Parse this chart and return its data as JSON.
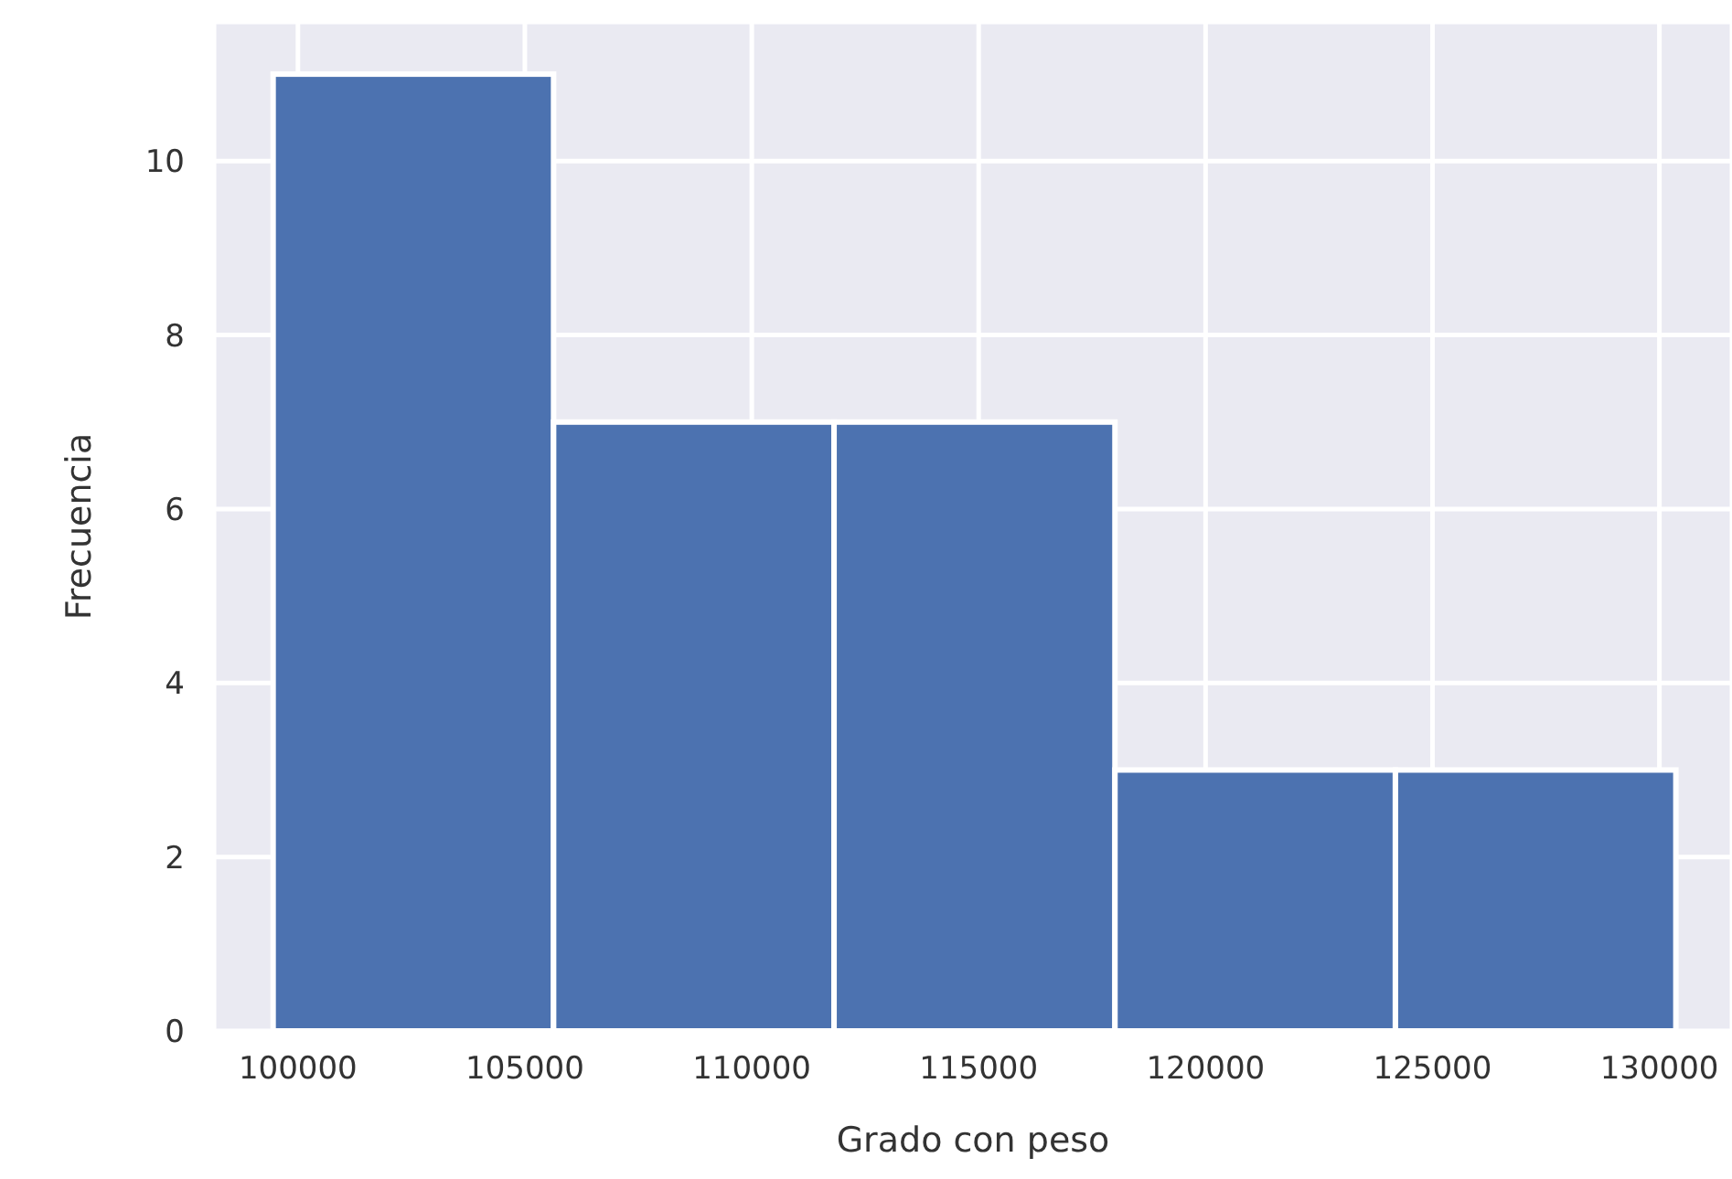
{
  "chart_data": {
    "type": "histogram",
    "xlabel": "Grado con peso",
    "ylabel": "Frecuencia",
    "bins": [
      99440,
      105620,
      111800,
      117990,
      124170,
      130350
    ],
    "values": [
      11,
      7,
      7,
      3,
      3
    ],
    "color": "#4c72b0",
    "xlim": [
      98150,
      131600
    ],
    "xticks": [
      100000,
      105000,
      110000,
      115000,
      120000,
      125000,
      130000
    ],
    "ylim": [
      0,
      11.6
    ],
    "yticks": [
      0,
      2,
      4,
      6,
      8,
      10
    ],
    "grid": true
  }
}
